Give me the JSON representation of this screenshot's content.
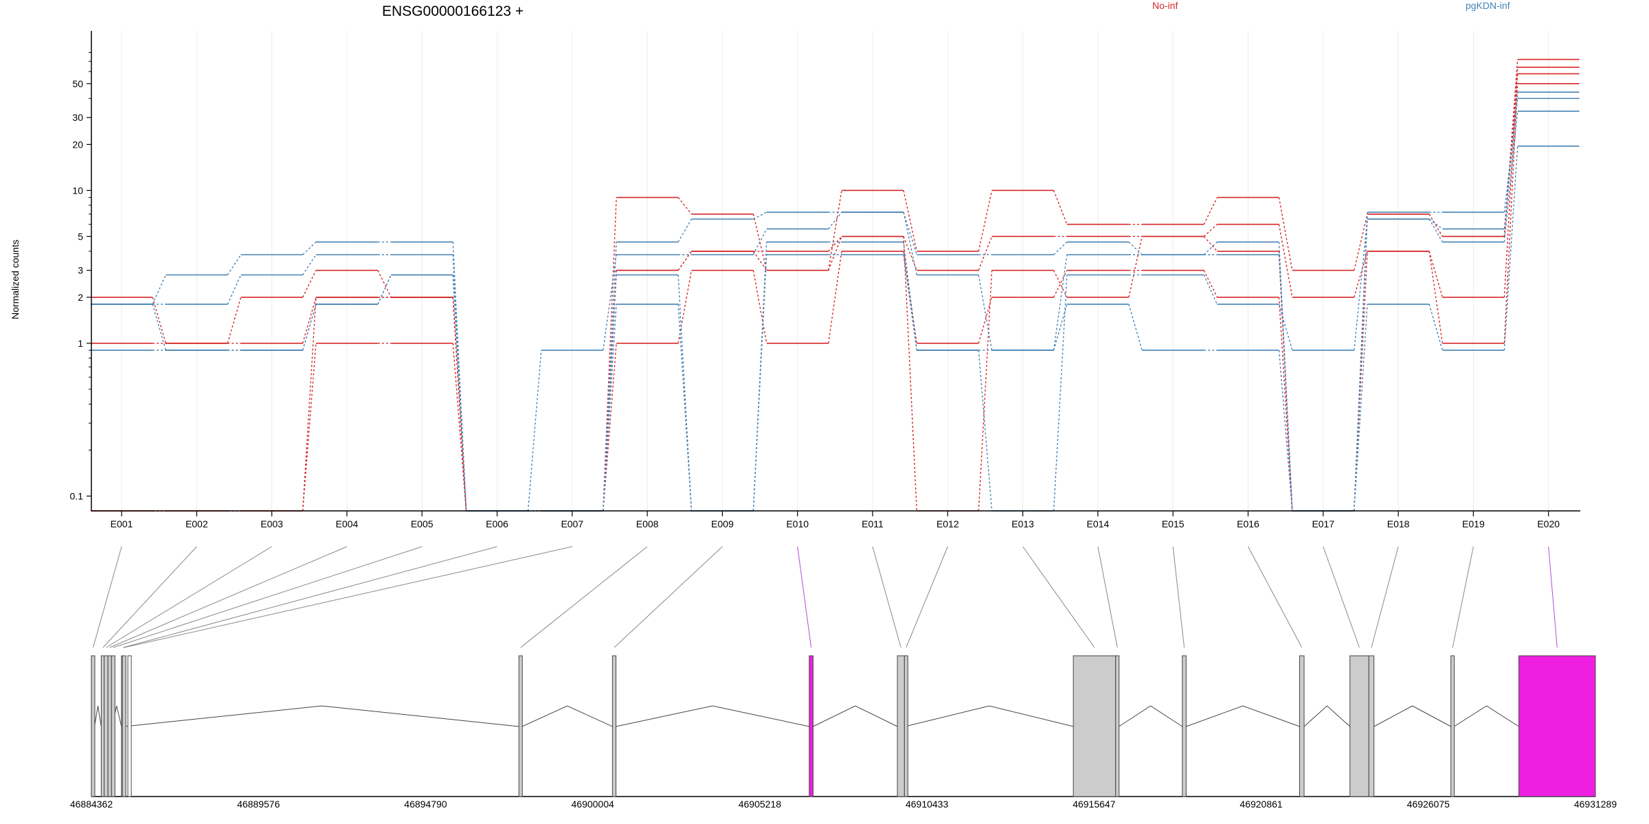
{
  "chart_data": {
    "type": "line",
    "title": "ENSG00000166123 +",
    "ylabel": "Normalized counts",
    "yscale": "log",
    "ylim": [
      0.08,
      90
    ],
    "y_ticks": [
      0.1,
      1,
      2,
      3,
      5,
      10,
      20,
      30,
      50
    ],
    "y_tick_labels": [
      "0.1",
      "1",
      "2",
      "3",
      "5",
      "10",
      "20",
      "30",
      "50"
    ],
    "grid": "vertical",
    "categories": [
      "E001",
      "E002",
      "E003",
      "E004",
      "E005",
      "E006",
      "E007",
      "E008",
      "E009",
      "E010",
      "E011",
      "E012",
      "E013",
      "E014",
      "E015",
      "E016",
      "E017",
      "E018",
      "E019",
      "E020"
    ],
    "legend": [
      {
        "label": "No-inf",
        "color": "#d62728"
      },
      {
        "label": "pgKDN-inf",
        "color": "#4682b4"
      }
    ],
    "series": [
      {
        "group": "No-inf",
        "color": "#d62728",
        "values": [
          2,
          1,
          1,
          2,
          2,
          0.08,
          0.08,
          9,
          7,
          3,
          10,
          4,
          10,
          6,
          6,
          9,
          3,
          7,
          5,
          72
        ]
      },
      {
        "group": "No-inf",
        "color": "#d62728",
        "values": [
          1,
          1,
          2,
          3,
          2,
          0.08,
          0.08,
          3,
          4,
          3,
          5,
          3,
          5,
          5,
          5,
          6,
          2,
          4,
          2,
          64
        ]
      },
      {
        "group": "No-inf",
        "color": "#d62728",
        "values": [
          0.08,
          0.08,
          0.08,
          1,
          1,
          0.08,
          0.08,
          1,
          3,
          1,
          4,
          1,
          2,
          3,
          3,
          2,
          0.08,
          4,
          1,
          50
        ]
      },
      {
        "group": "No-inf",
        "color": "#d62728",
        "values": [
          0.08,
          0.08,
          0.08,
          2,
          2,
          0.08,
          0.08,
          3,
          4,
          4,
          5,
          0.08,
          3,
          2,
          5,
          4,
          0.08,
          7,
          5,
          58
        ]
      },
      {
        "group": "pgKDN-inf",
        "color": "#4682b4",
        "values": [
          1.8,
          2.8,
          3.8,
          4.6,
          4.6,
          0.08,
          0.08,
          4.6,
          6.5,
          7.2,
          7.2,
          3.8,
          3.8,
          4.6,
          3.8,
          4.6,
          0.08,
          7.2,
          7.2,
          40
        ]
      },
      {
        "group": "pgKDN-inf",
        "color": "#4682b4",
        "values": [
          1.8,
          1.8,
          2.8,
          3.8,
          3.8,
          0.08,
          0.9,
          3.8,
          3.8,
          5.6,
          7.2,
          2.8,
          0.9,
          3.8,
          3.8,
          3.8,
          0.08,
          6.5,
          5.6,
          44
        ]
      },
      {
        "group": "pgKDN-inf",
        "color": "#4682b4",
        "values": [
          0.9,
          0.9,
          0.9,
          1.8,
          2.8,
          0.08,
          0.08,
          2.8,
          0.08,
          4.6,
          4.6,
          0.9,
          0.08,
          2.8,
          2.8,
          1.8,
          0.9,
          6.5,
          4.6,
          33
        ]
      },
      {
        "group": "pgKDN-inf",
        "color": "#4682b4",
        "values": [
          1.8,
          0.9,
          0.9,
          1.8,
          2.8,
          0.08,
          0.08,
          1.8,
          0.08,
          3.8,
          3.8,
          0.9,
          0.9,
          1.8,
          0.9,
          0.9,
          0.08,
          1.8,
          0.9,
          19.5
        ]
      }
    ],
    "gene_model": {
      "genomic_range": [
        46884362,
        46931289
      ],
      "coordinate_labels": [
        "46884362",
        "46889576",
        "46894790",
        "46900004",
        "46905218",
        "46910433",
        "46915647",
        "46920861",
        "46926075",
        "46931289"
      ],
      "coordinate_positions": [
        46884362,
        46889576,
        46894790,
        46900004,
        46905218,
        46910433,
        46915647,
        46920861,
        46926075,
        46931289
      ],
      "highlight_color": "#ee1fe0",
      "exon_color": "#cccccc",
      "exons": [
        {
          "id": "E001",
          "start": 46884362,
          "end": 46884460,
          "highlight": false
        },
        {
          "id": "E002",
          "start": 46884670,
          "end": 46884760,
          "highlight": false
        },
        {
          "id": "E003",
          "start": 46884760,
          "end": 46884880,
          "highlight": false
        },
        {
          "id": "E004",
          "start": 46884880,
          "end": 46884990,
          "highlight": false
        },
        {
          "id": "E005",
          "start": 46884990,
          "end": 46885000,
          "highlight": false
        },
        {
          "id": "E006",
          "start": 46885300,
          "end": 46885330,
          "highlight": false
        },
        {
          "id": "E007",
          "start": 46885330,
          "end": 46885400,
          "highlight": false
        },
        {
          "id": "E008",
          "start": 46897700,
          "end": 46897800,
          "highlight": false
        },
        {
          "id": "E009",
          "start": 46900620,
          "end": 46900730,
          "highlight": false
        },
        {
          "id": "E010",
          "start": 46906760,
          "end": 46906880,
          "highlight": true
        },
        {
          "id": "E011",
          "start": 46909510,
          "end": 46909730,
          "highlight": false
        },
        {
          "id": "E012",
          "start": 46909730,
          "end": 46909750,
          "highlight": false
        },
        {
          "id": "E013",
          "start": 46915000,
          "end": 46916320,
          "highlight": false
        },
        {
          "id": "E014",
          "start": 46916320,
          "end": 46916420,
          "highlight": false
        },
        {
          "id": "E015",
          "start": 46918400,
          "end": 46918520,
          "highlight": false
        },
        {
          "id": "E016",
          "start": 46922060,
          "end": 46922200,
          "highlight": false
        },
        {
          "id": "E017",
          "start": 46923630,
          "end": 46924220,
          "highlight": false
        },
        {
          "id": "E018",
          "start": 46924220,
          "end": 46924380,
          "highlight": false
        },
        {
          "id": "E019",
          "start": 46926780,
          "end": 46926880,
          "highlight": false
        },
        {
          "id": "E020",
          "start": 46928900,
          "end": 46931289,
          "highlight": true
        }
      ],
      "extra_boxes": [
        {
          "start": 46885500,
          "end": 46885600
        },
        {
          "start": 46884360,
          "end": 46884400
        }
      ]
    }
  }
}
